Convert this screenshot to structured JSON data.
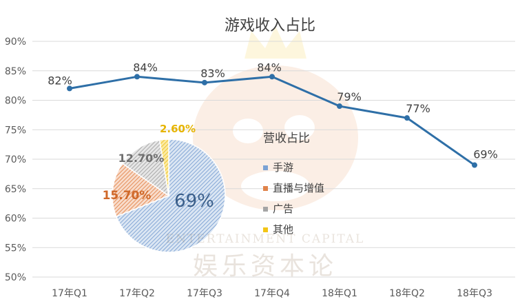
{
  "chart_data": [
    {
      "type": "line",
      "title": "游戏收入占比",
      "categories": [
        "17年Q1",
        "17年Q2",
        "17年Q3",
        "17年Q4",
        "18年Q1",
        "18年Q2",
        "18年Q3"
      ],
      "values": [
        82,
        84,
        83,
        84,
        79,
        77,
        69
      ],
      "data_labels": [
        "82%",
        "84%",
        "83%",
        "84%",
        "79%",
        "77%",
        "69%"
      ],
      "y_ticks": [
        "50%",
        "55%",
        "60%",
        "65%",
        "70%",
        "75%",
        "80%",
        "85%",
        "90%"
      ],
      "ylim": [
        50,
        90
      ],
      "grid": true,
      "color": "#2e6fa7"
    },
    {
      "type": "pie",
      "legend_title": "营收占比",
      "slices": [
        {
          "name": "手游",
          "value": 69,
          "label": "69%",
          "color": "#7aa2d4"
        },
        {
          "name": "直播与增值",
          "value": 15.7,
          "label": "15.70%",
          "color": "#e0834a"
        },
        {
          "name": "广告",
          "value": 12.7,
          "label": "12.70%",
          "color": "#a5a5a5"
        },
        {
          "name": "其他",
          "value": 2.6,
          "label": "2.60%",
          "color": "#f3c516"
        }
      ],
      "legend_position": "right"
    }
  ],
  "watermark": {
    "main": "娱乐资本论",
    "sub": "ENTERTAINMENT CAPITAL"
  }
}
